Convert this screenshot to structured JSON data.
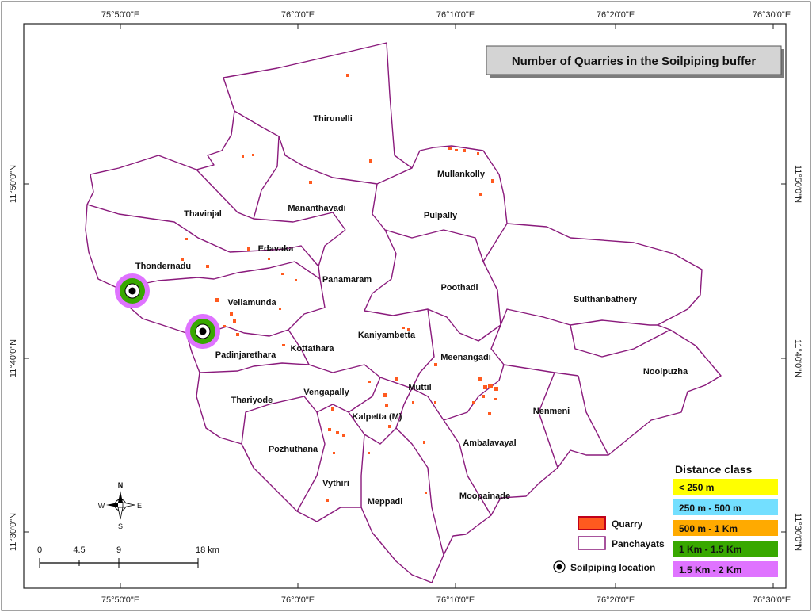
{
  "title": "Number of Quarries in the Soilpiping buffer",
  "coords": {
    "top": [
      "75°50'0\"E",
      "76°0'0\"E",
      "76°10'0\"E",
      "76°20'0\"E",
      "76°30'0\"E"
    ],
    "bottom": [
      "75°50'0\"E",
      "76°0'0\"E",
      "76°10'0\"E",
      "76°20'0\"E",
      "76°30'0\"E"
    ],
    "left": [
      "11°50'0\"N",
      "11°40'0\"N",
      "11°30'0\"N"
    ],
    "right": [
      "11°50'0\"N",
      "11°40'0\"N",
      "11°30'0\"N"
    ]
  },
  "panchayats": [
    "Thirunelli",
    "Mullankolly",
    "Mananthavadi",
    "Thavinjal",
    "Pulpally",
    "Edavaka",
    "Thondernadu",
    "Panamaram",
    "Poothadi",
    "Sulthanbathery",
    "Vellamunda",
    "Kaniyambetta",
    "Padinjarethara",
    "Kottathara",
    "Meenangadi",
    "Noolpuzha",
    "Thariyode",
    "Vengapally",
    "Muttil",
    "Kalpetta (M)",
    "Nenmeni",
    "Ambalavayal",
    "Pozhuthana",
    "Vythiri",
    "Meppadi",
    "Moopainade"
  ],
  "legend": {
    "distance_title": "Distance class",
    "classes": [
      {
        "label": "< 250 m",
        "color": "#ffff00"
      },
      {
        "label": "250 m - 500 m",
        "color": "#73dfff"
      },
      {
        "label": "500 m - 1 Km",
        "color": "#ffaa00"
      },
      {
        "label": "1 Km - 1.5 Km",
        "color": "#38a800"
      },
      {
        "label": "1.5 Km - 2 Km",
        "color": "#df73ff"
      }
    ],
    "quarry": "Quarry",
    "panchayats": "Panchayats",
    "soilpiping": "Soilpiping location"
  },
  "colors": {
    "boundary": "#8a1a7c",
    "quarry": "#ff5a1f"
  },
  "north_arrow": {
    "n": "N",
    "s": "S",
    "e": "E",
    "w": "W"
  },
  "scale_bar": {
    "labels": [
      "0",
      "4.5",
      "9",
      "18 km"
    ]
  }
}
